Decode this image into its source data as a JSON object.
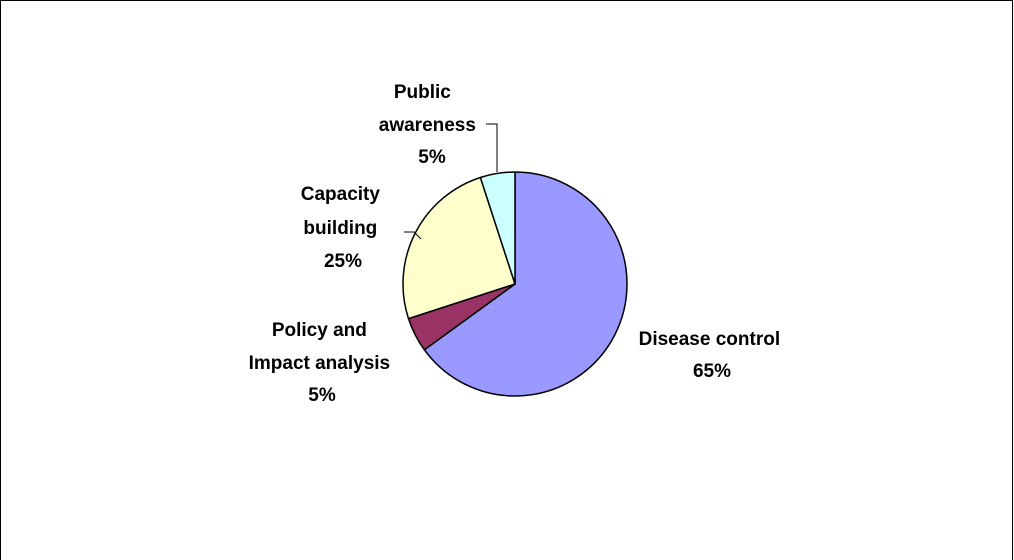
{
  "chart_data": {
    "type": "pie",
    "title": "",
    "slices": [
      {
        "label": "Disease control",
        "percent_label": "65%",
        "value": 65,
        "color": "#9999ff"
      },
      {
        "label": "Policy and Impact analysis",
        "percent_label": "5%",
        "value": 5,
        "color": "#993366"
      },
      {
        "label": "Capacity building",
        "percent_label": "25%",
        "value": 25,
        "color": "#ffffcc"
      },
      {
        "label": "Public awareness",
        "percent_label": "5%",
        "value": 5,
        "color": "#ccffff"
      }
    ],
    "legend": "none",
    "border": true
  }
}
